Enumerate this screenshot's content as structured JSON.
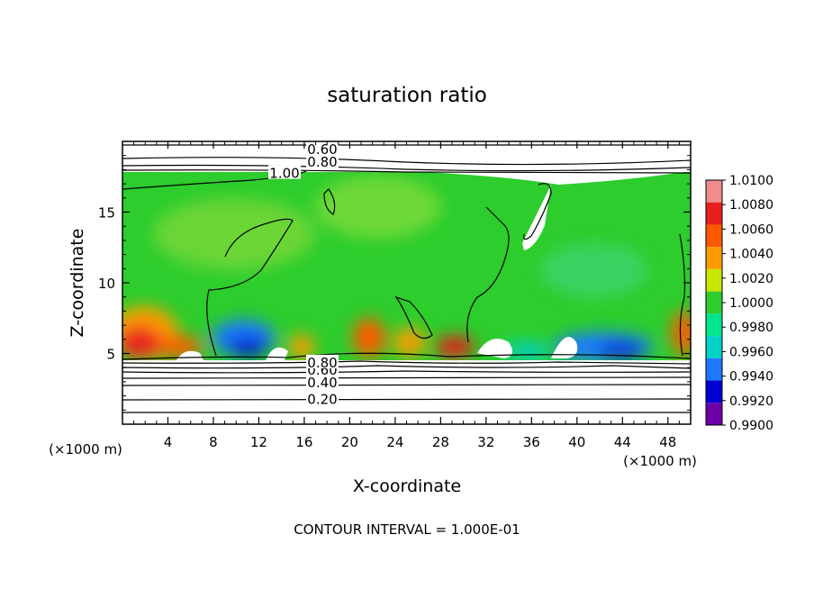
{
  "chart_data": {
    "type": "heatmap",
    "title": "saturation ratio",
    "xlabel": "X-coordinate",
    "ylabel": "Z-coordinate",
    "x_unit_left": "(×1000 m)",
    "x_unit_right": "(×1000 m)",
    "footer": "CONTOUR INTERVAL = 1.000E-01",
    "xlim": [
      0,
      50
    ],
    "ylim": [
      0,
      20
    ],
    "x_ticks": [
      4,
      8,
      12,
      16,
      20,
      24,
      28,
      32,
      36,
      40,
      44,
      48
    ],
    "y_ticks": [
      5,
      10,
      15
    ],
    "colorbar": {
      "levels": [
        "1.0100",
        "1.0080",
        "1.0060",
        "1.0040",
        "1.0020",
        "1.0000",
        "0.9980",
        "0.9960",
        "0.9940",
        "0.9920",
        "0.9900"
      ],
      "colors": [
        "#f08c8c",
        "#e81e1e",
        "#ff5a00",
        "#ff9b00",
        "#c8e600",
        "#2ccd2c",
        "#00e68c",
        "#00d2c8",
        "#1e78ff",
        "#0000d2",
        "#6e00aa"
      ]
    },
    "contours": [
      {
        "value": 0.2,
        "label": "0.20",
        "z": 1.8
      },
      {
        "value": 0.4,
        "label": "0.40",
        "z": 3.0
      },
      {
        "value": 0.6,
        "label": "0.60",
        "z": 3.9
      },
      {
        "value": 0.8,
        "label": "0.80",
        "z": 4.4
      },
      {
        "value": 0.6,
        "label": "0.60",
        "z": 19.5
      },
      {
        "value": 0.8,
        "label": "0.80",
        "z": 18.6
      },
      {
        "value": 1.0,
        "label": "1.00",
        "z": 17.8
      }
    ]
  }
}
